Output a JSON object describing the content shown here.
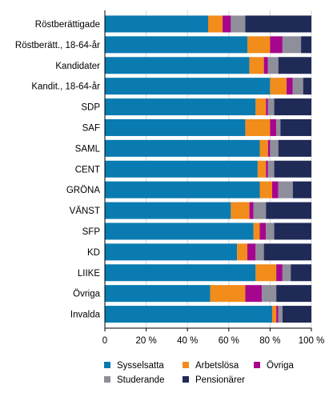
{
  "chart_data": {
    "type": "bar",
    "orientation": "horizontal",
    "stacked": true,
    "percent_axis": true,
    "categories": [
      "Röstberättigade",
      "Röstberätt., 18-64-år",
      "Kandidater",
      "Kandit., 18-64-år",
      "SDP",
      "SAF",
      "SAML",
      "CENT",
      "GRÖNA",
      "VÄNST",
      "SFP",
      "KD",
      "LIIKE",
      "Övriga",
      "Invalda"
    ],
    "series": [
      {
        "name": "Sysselsatta",
        "color": "#0a7bb1",
        "values": [
          50,
          69,
          70,
          80,
          73,
          68,
          75,
          74,
          75,
          61,
          72,
          64,
          73,
          51,
          81
        ]
      },
      {
        "name": "Arbetslösa",
        "color": "#f28c1a",
        "values": [
          7,
          11,
          7,
          8,
          5,
          12,
          4,
          4,
          6,
          9,
          3,
          5,
          10,
          17,
          2
        ]
      },
      {
        "name": "Övriga",
        "color": "#a6068e",
        "values": [
          4,
          6,
          2,
          3,
          1,
          3,
          1,
          1,
          3,
          2,
          3,
          4,
          3,
          8,
          1
        ]
      },
      {
        "name": "Studerande",
        "color": "#8f8f9b",
        "values": [
          7,
          9,
          5,
          5,
          3,
          2,
          4,
          3,
          7,
          6,
          4,
          4,
          4,
          7,
          2
        ]
      },
      {
        "name": "Pensionärer",
        "color": "#202a57",
        "values": [
          32,
          5,
          16,
          4,
          18,
          15,
          16,
          18,
          9,
          22,
          18,
          23,
          10,
          17,
          14
        ]
      }
    ],
    "x_ticks": [
      "0",
      "20 %",
      "40 %",
      "60 %",
      "80 %",
      "100 %"
    ],
    "xlim": [
      0,
      100
    ],
    "grid": "vertical",
    "legend_position": "bottom"
  }
}
